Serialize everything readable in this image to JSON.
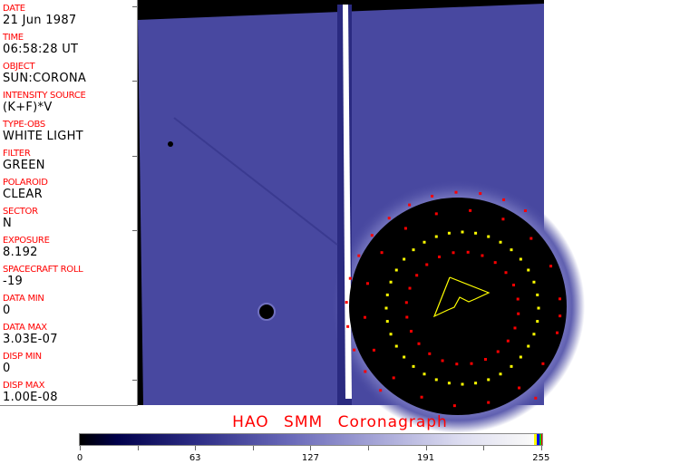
{
  "fields": [
    {
      "label": "DATE",
      "value": "21 Jun 1987"
    },
    {
      "label": "TIME",
      "value": "06:58:28 UT"
    },
    {
      "label": "OBJECT",
      "value": "SUN:CORONA"
    },
    {
      "label": "INTENSITY SOURCE",
      "value": "(K+F)*V"
    },
    {
      "label": "TYPE-OBS",
      "value": "WHITE LIGHT"
    },
    {
      "label": "FILTER",
      "value": "GREEN"
    },
    {
      "label": "POLAROID",
      "value": "CLEAR"
    },
    {
      "label": "SECTOR",
      "value": "N"
    },
    {
      "label": "EXPOSURE",
      "value": "8.192"
    },
    {
      "label": "SPACECRAFT ROLL",
      "value": "-19"
    },
    {
      "label": "DATA MIN",
      "value": "0"
    },
    {
      "label": "DATA MAX",
      "value": "3.03E-07"
    },
    {
      "label": "DISP MIN",
      "value": "0"
    },
    {
      "label": "DISP MAX",
      "value": "1.00E-08"
    }
  ],
  "title": "HAO  SMM Coronagraph",
  "colorbar": {
    "ticks": [
      "0",
      "63",
      "127",
      "191",
      "255"
    ],
    "colors": {
      "overlay_red": "#ff0000",
      "overlay_yellow": "#ffff00",
      "field": "#4848a0"
    }
  }
}
